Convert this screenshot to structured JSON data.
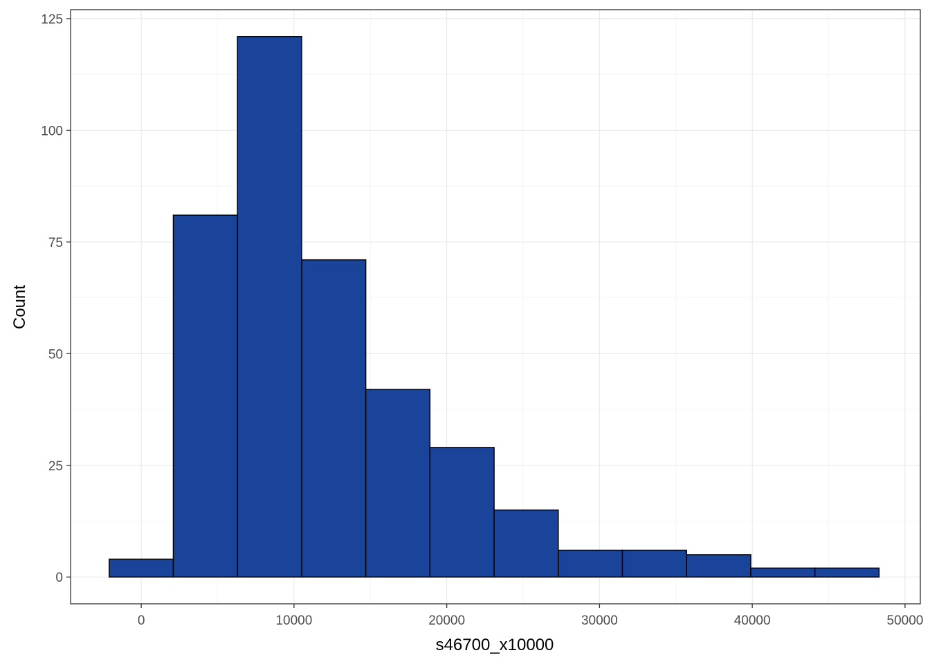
{
  "chart_data": {
    "type": "bar",
    "subtype": "histogram",
    "title": "",
    "xlabel": "s46700_x10000",
    "ylabel": "Count",
    "bin_width": 4200,
    "bins": [
      {
        "x_start": -2100,
        "x_end": 2100,
        "count": 4
      },
      {
        "x_start": 2100,
        "x_end": 6300,
        "count": 81
      },
      {
        "x_start": 6300,
        "x_end": 10500,
        "count": 121
      },
      {
        "x_start": 10500,
        "x_end": 14700,
        "count": 71
      },
      {
        "x_start": 14700,
        "x_end": 18900,
        "count": 42
      },
      {
        "x_start": 18900,
        "x_end": 23100,
        "count": 29
      },
      {
        "x_start": 23100,
        "x_end": 27300,
        "count": 15
      },
      {
        "x_start": 27300,
        "x_end": 31500,
        "count": 6
      },
      {
        "x_start": 31500,
        "x_end": 35700,
        "count": 6
      },
      {
        "x_start": 35700,
        "x_end": 39900,
        "count": 5
      },
      {
        "x_start": 39900,
        "x_end": 44100,
        "count": 2
      },
      {
        "x_start": 44100,
        "x_end": 48300,
        "count": 2
      }
    ],
    "xlim": [
      -4625,
      51000
    ],
    "ylim": [
      -6,
      127
    ],
    "x_ticks": [
      0,
      10000,
      20000,
      30000,
      40000,
      50000
    ],
    "x_tick_labels": [
      "0",
      "10000",
      "20000",
      "30000",
      "40000",
      "50000"
    ],
    "y_ticks": [
      0,
      25,
      50,
      75,
      100,
      125
    ],
    "y_tick_labels": [
      "0",
      "25",
      "50",
      "75",
      "100",
      "125"
    ],
    "grid": true,
    "legend": "none",
    "colors": {
      "bar_fill": "#1a4499",
      "bar_outline": "#000000",
      "grid_major": "#ebebeb",
      "grid_minor": "#f5f5f5",
      "panel_border": "#333333",
      "tick_text": "#4d4d4d"
    }
  }
}
